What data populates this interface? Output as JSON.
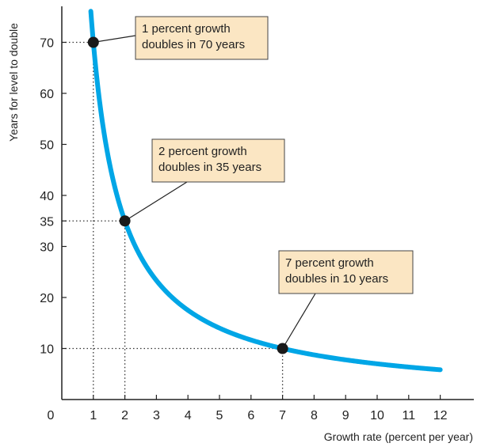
{
  "chart_data": {
    "type": "line",
    "xlabel": "Growth rate (percent per year)",
    "ylabel": "Years for level to double",
    "x_ticks": [
      1,
      2,
      3,
      4,
      5,
      6,
      7,
      8,
      9,
      10,
      11,
      12
    ],
    "y_ticks": [
      10,
      20,
      30,
      35,
      40,
      50,
      60,
      70
    ],
    "origin_label": "0",
    "xlim": [
      0,
      12.5
    ],
    "ylim": [
      0,
      76
    ],
    "grid": false,
    "curve": {
      "formula": "y = 70 / x",
      "x": [
        0.92,
        1,
        1.5,
        2,
        2.5,
        3,
        3.5,
        4,
        5,
        6,
        7,
        8,
        9,
        10,
        11,
        12
      ],
      "y": [
        76,
        70,
        46.7,
        35,
        28,
        23.3,
        20,
        17.5,
        14,
        11.7,
        10,
        8.75,
        7.78,
        7,
        6.36,
        5.83
      ],
      "color": "#00a6e6"
    },
    "highlighted_points": [
      {
        "x": 1,
        "y": 70,
        "label_lines": [
          "1 percent growth",
          "doubles in 70 years"
        ]
      },
      {
        "x": 2,
        "y": 35,
        "label_lines": [
          "2 percent growth",
          "doubles in 35 years"
        ]
      },
      {
        "x": 7,
        "y": 10,
        "label_lines": [
          "7 percent growth",
          "doubles in 10 years"
        ]
      }
    ],
    "colors": {
      "callout_fill": "#fbe6c3",
      "point": "#1a1a1a",
      "axis": "#222222"
    }
  }
}
